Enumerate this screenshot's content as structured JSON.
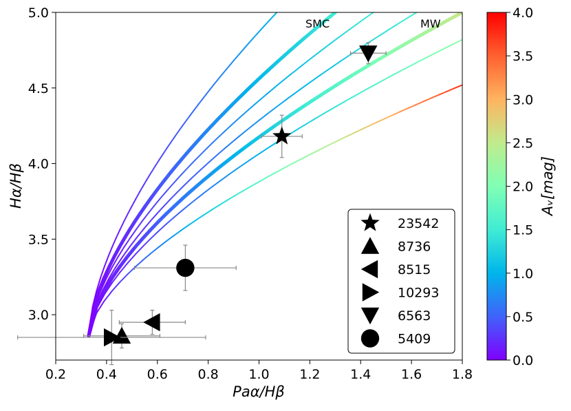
{
  "chart_data": {
    "type": "scatter",
    "xlabel": "Paα/Hβ",
    "ylabel": "Hα/Hβ",
    "xlim": [
      0.2,
      1.8
    ],
    "ylim": [
      2.7,
      5.0
    ],
    "xticks": [
      0.2,
      0.4,
      0.6,
      0.8,
      1.0,
      1.2,
      1.4,
      1.6,
      1.8
    ],
    "yticks": [
      3.0,
      3.5,
      4.0,
      4.5,
      5.0
    ],
    "curve_labels": {
      "smc": "SMC",
      "mw": "MW"
    },
    "colorbar": {
      "label": "Aᵥ[mag]",
      "range": [
        0.0,
        4.0
      ],
      "ticks": [
        0.0,
        0.5,
        1.0,
        1.5,
        2.0,
        2.5,
        3.0,
        3.5,
        4.0
      ],
      "colormap": "rainbow"
    },
    "origin": {
      "x": 0.33,
      "y": 2.86
    },
    "curves": [
      {
        "name": "curve-1",
        "end_x": 1.07,
        "end_y": 5.0,
        "end_av": 1.0,
        "width": 2
      },
      {
        "name": "SMC",
        "end_x": 1.3,
        "end_y": 5.0,
        "end_av": 1.5,
        "width": 5
      },
      {
        "name": "curve-3",
        "end_x": 1.45,
        "end_y": 5.0,
        "end_av": 1.5,
        "width": 2
      },
      {
        "name": "curve-4",
        "end_x": 1.62,
        "end_y": 5.0,
        "end_av": 1.55,
        "width": 2
      },
      {
        "name": "MW",
        "end_x": 1.8,
        "end_y": 5.0,
        "end_av": 2.55,
        "width": 5
      },
      {
        "name": "curve-6",
        "end_x": 1.8,
        "end_y": 4.82,
        "end_av": 2.15,
        "width": 2
      },
      {
        "name": "curve-7",
        "end_x": 1.8,
        "end_y": 4.52,
        "end_av": 3.75,
        "width": 2
      }
    ],
    "legend_position": "lower-right",
    "points": [
      {
        "label": "23542",
        "marker": "star",
        "x": 1.09,
        "y": 4.18,
        "xerr": 0.08,
        "yerr": 0.14
      },
      {
        "label": "8736",
        "marker": "triangle-up",
        "x": 0.46,
        "y": 2.86,
        "xerr": 0.15,
        "yerr": 0.08
      },
      {
        "label": "8515",
        "marker": "triangle-left",
        "x": 0.58,
        "y": 2.95,
        "xerr": 0.13,
        "yerr": 0.08
      },
      {
        "label": "10293",
        "marker": "triangle-right",
        "x": 0.42,
        "y": 2.85,
        "xerr": 0.37,
        "yerr": 0.18
      },
      {
        "label": "6563",
        "marker": "triangle-down",
        "x": 1.43,
        "y": 4.73,
        "xerr": 0.07,
        "yerr": 0.07
      },
      {
        "label": "5409",
        "marker": "circle",
        "x": 0.71,
        "y": 3.31,
        "xerr": 0.2,
        "yerr": 0.15
      }
    ]
  }
}
